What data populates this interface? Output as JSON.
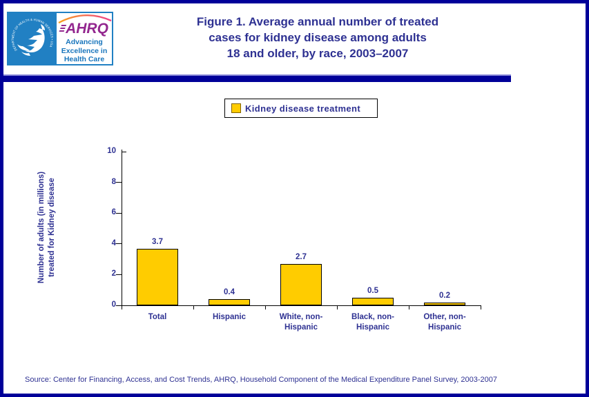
{
  "colors": {
    "page_border": "#000099",
    "navy_text": "#2E3192",
    "bar_fill": "#FFCC00",
    "bar_border": "#000000",
    "hhs_blue": "#2180C3",
    "ahrq_purple": "#93278F",
    "tagline_blue": "#1875BC"
  },
  "logo": {
    "circle_text": "DEPARTMENT OF HEALTH & HUMAN SERVICES • USA",
    "wordmark": "AHRQ",
    "tagline": "Advancing\nExcellence in\nHealth Care"
  },
  "header": {
    "title_lines": [
      "Figure 1. Average annual number of treated",
      "cases for kidney disease among adults",
      "18 and older, by race, 2003–2007"
    ]
  },
  "legend": {
    "label": "Kidney disease treatment"
  },
  "chart_data": {
    "type": "bar",
    "title": "Figure 1. Average annual number of treated cases for kidney disease among adults 18 and older, by race, 2003–2007",
    "categories": [
      "Total",
      "Hispanic",
      "White, non-\nHispanic",
      "Black, non-\nHispanic",
      "Other, non-\nHispanic"
    ],
    "values": [
      3.7,
      0.4,
      2.7,
      0.5,
      0.2
    ],
    "series": [
      {
        "name": "Kidney disease treatment",
        "values": [
          3.7,
          0.4,
          2.7,
          0.5,
          0.2
        ]
      }
    ],
    "xlabel": "",
    "ylabel": "Number of adults (in millions)\ntreated for Kidney disease",
    "ylim": [
      0,
      10
    ],
    "yticks": [
      0,
      2,
      4,
      6,
      8,
      10
    ],
    "grid": false,
    "legend_position": "top",
    "bar_color": "#FFCC00"
  },
  "footer": {
    "source": "Source: Center for Financing, Access, and Cost Trends, AHRQ, Household Component of the Medical Expenditure Panel Survey, 2003-2007"
  }
}
